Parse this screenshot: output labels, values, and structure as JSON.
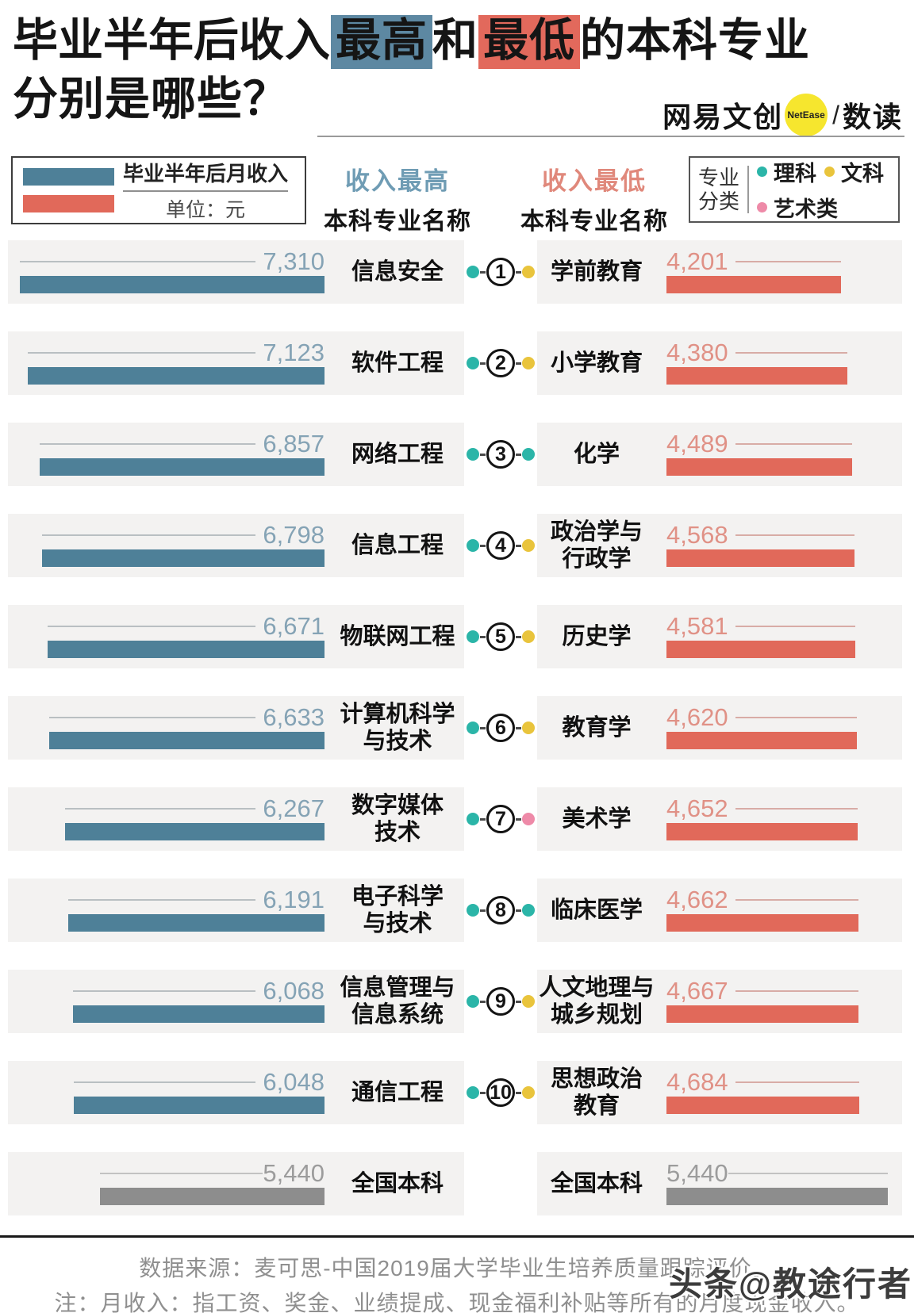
{
  "title": {
    "lead": "毕业半年后",
    "pre": "收入",
    "hl_high": "最高",
    "mid": "和",
    "hl_low": "最低",
    "post": "的本科专业",
    "line2": "分别是哪些？"
  },
  "logo": {
    "brand": "网易文创",
    "badge": "NetEase",
    "slash": "/",
    "product": "数读"
  },
  "legend": {
    "bar_label": "毕业半年后月收入",
    "unit_label": "单位：元",
    "high_color": "#4e8098",
    "low_color": "#e1695a"
  },
  "col_headers": {
    "high_title": "收入最高",
    "low_title": "收入最低",
    "subtitle_high": "本科专业名称",
    "subtitle_low": "本科专业名称"
  },
  "category_legend": {
    "label": "专业\n分类",
    "items": [
      {
        "name": "理科",
        "color": "#2bb5a8"
      },
      {
        "name": "文科",
        "color": "#e9c43c"
      },
      {
        "name": "艺术类",
        "color": "#ee8aa8"
      }
    ]
  },
  "chart_data": {
    "type": "bar",
    "title": "毕业半年后收入最高和最低的本科专业",
    "unit": "元",
    "value_label": "毕业半年后月收入",
    "legend_position": "top",
    "series_names": [
      "收入最高本科专业",
      "收入最低本科专业"
    ],
    "rows": [
      {
        "rank": 1,
        "high": {
          "major": "信息安全",
          "display": "信息安全",
          "income": 7310,
          "category": "理科"
        },
        "low": {
          "major": "学前教育",
          "display": "学前教育",
          "income": 4201,
          "category": "文科"
        }
      },
      {
        "rank": 2,
        "high": {
          "major": "软件工程",
          "display": "软件工程",
          "income": 7123,
          "category": "理科"
        },
        "low": {
          "major": "小学教育",
          "display": "小学教育",
          "income": 4380,
          "category": "文科"
        }
      },
      {
        "rank": 3,
        "high": {
          "major": "网络工程",
          "display": "网络工程",
          "income": 6857,
          "category": "理科"
        },
        "low": {
          "major": "化学",
          "display": "化学",
          "income": 4489,
          "category": "理科"
        }
      },
      {
        "rank": 4,
        "high": {
          "major": "信息工程",
          "display": "信息工程",
          "income": 6798,
          "category": "理科"
        },
        "low": {
          "major": "政治学与行政学",
          "display": "政治学与\n行政学",
          "income": 4568,
          "category": "文科"
        }
      },
      {
        "rank": 5,
        "high": {
          "major": "物联网工程",
          "display": "物联网工程",
          "income": 6671,
          "category": "理科"
        },
        "low": {
          "major": "历史学",
          "display": "历史学",
          "income": 4581,
          "category": "文科"
        }
      },
      {
        "rank": 6,
        "high": {
          "major": "计算机科学与技术",
          "display": "计算机科学\n与技术",
          "income": 6633,
          "category": "理科"
        },
        "low": {
          "major": "教育学",
          "display": "教育学",
          "income": 4620,
          "category": "文科"
        }
      },
      {
        "rank": 7,
        "high": {
          "major": "数字媒体技术",
          "display": "数字媒体\n技术",
          "income": 6267,
          "category": "理科"
        },
        "low": {
          "major": "美术学",
          "display": "美术学",
          "income": 4652,
          "category": "艺术类"
        }
      },
      {
        "rank": 8,
        "high": {
          "major": "电子科学与技术",
          "display": "电子科学\n与技术",
          "income": 6191,
          "category": "理科"
        },
        "low": {
          "major": "临床医学",
          "display": "临床医学",
          "income": 4662,
          "category": "理科"
        }
      },
      {
        "rank": 9,
        "high": {
          "major": "信息管理与信息系统",
          "display": "信息管理与\n信息系统",
          "income": 6068,
          "category": "理科"
        },
        "low": {
          "major": "人文地理与城乡规划",
          "display": "人文地理与\n城乡规划",
          "income": 4667,
          "category": "文科"
        }
      },
      {
        "rank": 10,
        "high": {
          "major": "通信工程",
          "display": "通信工程",
          "income": 6048,
          "category": "理科"
        },
        "low": {
          "major": "思想政治教育",
          "display": "思想政治\n教育",
          "income": 4684,
          "category": "文科"
        }
      }
    ],
    "national": {
      "label": "全国本科",
      "income": 5440,
      "color": "#8d8d8d"
    },
    "colors": {
      "high": "#4e8098",
      "low": "#e1695a",
      "national": "#8d8d8d"
    }
  },
  "footer": {
    "source": "数据来源：麦可思-中国2019届大学毕业生培养质量跟踪评价。",
    "note": "注：月收入：指工资、奖金、业绩提成、现金福利补贴等所有的月度现金收入。",
    "watermark": "头条@教途行者"
  }
}
